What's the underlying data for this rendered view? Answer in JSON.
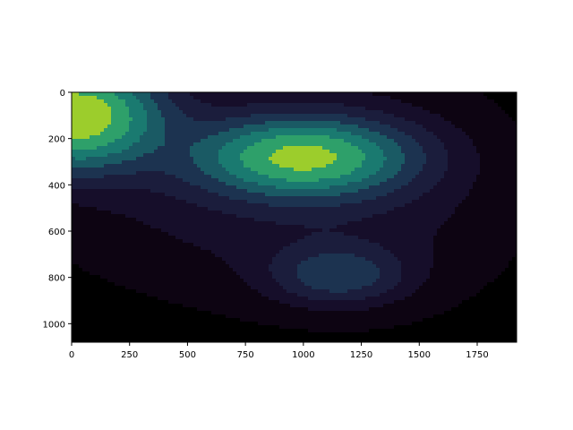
{
  "chart_data": {
    "type": "contourf",
    "title": "",
    "xlabel": "",
    "ylabel": "",
    "xlim": [
      0,
      1920
    ],
    "ylim": [
      1080,
      0
    ],
    "y_inverted": true,
    "grid": false,
    "legend": "none",
    "colormap": "viridis",
    "x_ticks": [
      0,
      250,
      500,
      750,
      1000,
      1250,
      1500,
      1750
    ],
    "y_ticks": [
      0,
      200,
      400,
      600,
      800,
      1000
    ],
    "x_tick_labels": [
      "0",
      "250",
      "500",
      "750",
      "1000",
      "1250",
      "1500",
      "1750"
    ],
    "y_tick_labels": [
      "0",
      "200",
      "400",
      "600",
      "800",
      "1000"
    ],
    "levels": [
      {
        "level": 0,
        "color": "#000000"
      },
      {
        "level": 1,
        "color": "#0d0412"
      },
      {
        "level": 2,
        "color": "#160e2a"
      },
      {
        "level": 3,
        "color": "#1b1d3c"
      },
      {
        "level": 4,
        "color": "#1c3350"
      },
      {
        "level": 5,
        "color": "#1a5a64"
      },
      {
        "level": 6,
        "color": "#1a7a70"
      },
      {
        "level": 7,
        "color": "#2ea06a"
      },
      {
        "level": 8,
        "color": "#9ccd2c"
      }
    ],
    "density_peaks": [
      {
        "x": 10,
        "y": 100,
        "weight": 1.0,
        "spread_x": 240,
        "spread_y": 150
      },
      {
        "x": 1000,
        "y": 280,
        "weight": 0.78,
        "spread_x": 300,
        "spread_y": 110
      },
      {
        "x": 1150,
        "y": 790,
        "weight": 0.3,
        "spread_x": 190,
        "spread_y": 85
      }
    ],
    "background_density": [
      {
        "x": 700,
        "y": 360,
        "weight": 0.15,
        "spread_x": 650,
        "spread_y": 360
      },
      {
        "x": 1350,
        "y": 480,
        "weight": 0.08,
        "spread_x": 480,
        "spread_y": 380
      }
    ]
  }
}
